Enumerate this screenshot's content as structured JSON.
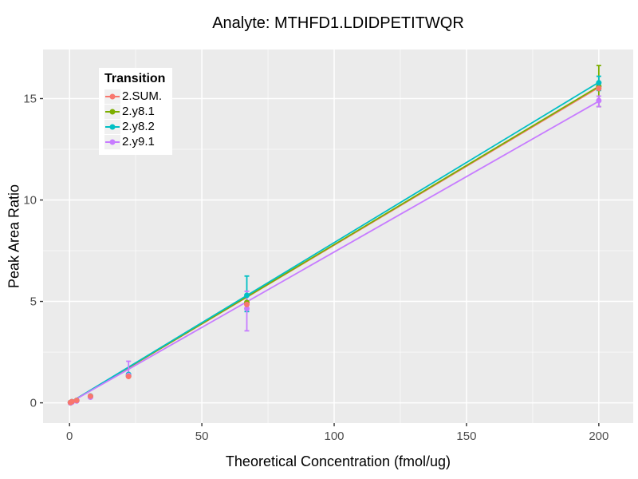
{
  "chart_data": {
    "type": "scatter",
    "title": "Analyte: MTHFD1.LDIDPETITWQR",
    "xlabel": "Theoretical Concentration (fmol/ug)",
    "ylabel": "Peak Area Ratio",
    "xlim": [
      -10,
      213
    ],
    "ylim": [
      -1.0,
      17.42
    ],
    "xticks": [
      0,
      50,
      100,
      150,
      200
    ],
    "yticks": [
      0,
      5,
      10,
      15
    ],
    "minor_xticks": [
      25,
      75,
      125,
      175
    ],
    "minor_yticks": [
      2.5,
      7.5,
      12.5
    ],
    "grid": "on",
    "panel_bg": "#EBEBEB",
    "grid_color": "#FFFFFF",
    "tick_label_color": "#4D4D4D",
    "tick_mark_color": "#333333",
    "legend": {
      "title": "Transition",
      "position": "top-left-inside",
      "key_bg": "#F0F0F0"
    },
    "series": [
      {
        "name": "2.SUM.",
        "color": "#F8766D",
        "points": [
          [
            0.35,
            0.02
          ],
          [
            0.9,
            0.06
          ],
          [
            2.7,
            0.12
          ],
          [
            7.9,
            0.33
          ],
          [
            22.3,
            1.3
          ],
          [
            67,
            4.85
          ],
          [
            200,
            15.5
          ]
        ],
        "fit": [
          [
            0,
            0
          ],
          [
            200,
            15.55
          ]
        ],
        "error_bars": []
      },
      {
        "name": "2.y8.1",
        "color": "#7CAE00",
        "points": [
          [
            0.35,
            0.0
          ],
          [
            0.9,
            0.04
          ],
          [
            2.7,
            0.1
          ],
          [
            7.9,
            0.3
          ],
          [
            22.3,
            1.32
          ],
          [
            67,
            4.95
          ],
          [
            200,
            15.6
          ]
        ],
        "fit": [
          [
            0,
            0
          ],
          [
            200,
            15.6
          ]
        ],
        "error_bars": [
          [
            200,
            14.6,
            16.63
          ]
        ]
      },
      {
        "name": "2.y8.2",
        "color": "#00BFC4",
        "points": [
          [
            0.35,
            0.02
          ],
          [
            0.9,
            0.06
          ],
          [
            2.7,
            0.12
          ],
          [
            7.9,
            0.34
          ],
          [
            22.3,
            1.4
          ],
          [
            67,
            5.3
          ],
          [
            200,
            15.78
          ]
        ],
        "fit": [
          [
            0,
            0
          ],
          [
            200,
            15.8
          ]
        ],
        "error_bars": [
          [
            67,
            4.5,
            6.25
          ],
          [
            200,
            15.4,
            16.1
          ]
        ]
      },
      {
        "name": "2.y9.1",
        "color": "#C77CFF",
        "points": [
          [
            0.35,
            0.0
          ],
          [
            0.9,
            0.03
          ],
          [
            2.7,
            0.09
          ],
          [
            7.9,
            0.28
          ],
          [
            22.3,
            1.35
          ],
          [
            67,
            4.65
          ],
          [
            200,
            14.9
          ]
        ],
        "fit": [
          [
            0,
            0
          ],
          [
            200,
            14.87
          ]
        ],
        "error_bars": [
          [
            22.3,
            1.32,
            2.05
          ],
          [
            67,
            3.55,
            5.5
          ],
          [
            200,
            14.6,
            15.12
          ]
        ]
      }
    ],
    "point_draw_order": [
      1,
      2,
      3,
      0
    ]
  }
}
